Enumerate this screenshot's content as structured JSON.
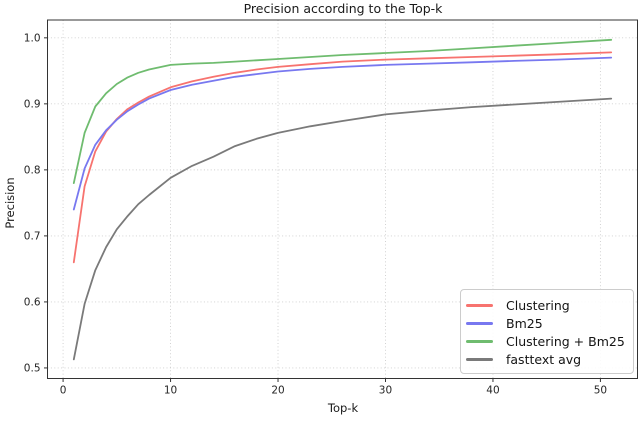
{
  "chart_data": {
    "type": "line",
    "title": "Precision according to the Top-k",
    "xlabel": "Top-k",
    "ylabel": "Precision",
    "xlim": [
      -1.45,
      53.45
    ],
    "ylim": [
      0.484,
      1.027
    ],
    "xticks": [
      0,
      10,
      20,
      30,
      40,
      50
    ],
    "xtick_labels": [
      "0",
      "10",
      "20",
      "30",
      "40",
      "50"
    ],
    "yticks": [
      0.5,
      0.6,
      0.7,
      0.8,
      0.9,
      1.0
    ],
    "ytick_labels": [
      "0.5",
      "0.6",
      "0.7",
      "0.8",
      "0.9",
      "1.0"
    ],
    "grid": true,
    "grid_style": "dotted",
    "legend_position": "lower right",
    "x": [
      1,
      2,
      3,
      4,
      5,
      6,
      7,
      8,
      10,
      12,
      14,
      16,
      18,
      20,
      23,
      26,
      30,
      34,
      38,
      42,
      46,
      51
    ],
    "series": [
      {
        "name": "Clustering",
        "color": "#f7736f",
        "values": [
          0.66,
          0.775,
          0.828,
          0.858,
          0.877,
          0.892,
          0.902,
          0.911,
          0.925,
          0.934,
          0.941,
          0.947,
          0.952,
          0.956,
          0.96,
          0.964,
          0.967,
          0.969,
          0.971,
          0.973,
          0.975,
          0.978
        ]
      },
      {
        "name": "Bm25",
        "color": "#7878f0",
        "values": [
          0.74,
          0.802,
          0.838,
          0.86,
          0.876,
          0.889,
          0.899,
          0.908,
          0.921,
          0.929,
          0.935,
          0.941,
          0.945,
          0.949,
          0.953,
          0.956,
          0.959,
          0.961,
          0.963,
          0.965,
          0.967,
          0.97
        ]
      },
      {
        "name": "Clustering + Bm25",
        "color": "#6fbc6f",
        "values": [
          0.78,
          0.856,
          0.896,
          0.916,
          0.93,
          0.94,
          0.947,
          0.952,
          0.959,
          0.961,
          0.962,
          0.964,
          0.966,
          0.968,
          0.971,
          0.974,
          0.977,
          0.98,
          0.984,
          0.988,
          0.992,
          0.997
        ]
      },
      {
        "name": "fasttext avg",
        "color": "#7a7a7a",
        "values": [
          0.513,
          0.597,
          0.648,
          0.683,
          0.71,
          0.73,
          0.748,
          0.762,
          0.788,
          0.806,
          0.82,
          0.836,
          0.847,
          0.856,
          0.866,
          0.874,
          0.884,
          0.89,
          0.895,
          0.899,
          0.903,
          0.908
        ]
      }
    ],
    "colors": {
      "background": "#ffffff",
      "grid": "#c8c8c8",
      "spine": "#333333",
      "text": "#1a1a1a"
    }
  }
}
